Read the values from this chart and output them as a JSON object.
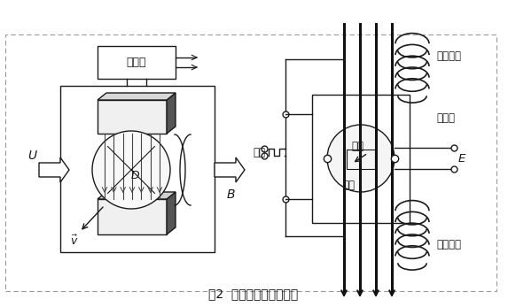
{
  "title": "图2  电磁流量计工作原理",
  "title_fontsize": 10,
  "bg_color": "#ffffff",
  "text_color": "#1a1a1a",
  "labels": {
    "converter": "转换器",
    "u_label": "U",
    "b_label": "B",
    "v_label": "\\vec{v}",
    "d_label": "D",
    "fangbo": "方波",
    "electrode": "电极",
    "liusu": "流速",
    "E_label": "E",
    "excitation_coil_top": "励磁线圈",
    "measurement_tube": "测量管",
    "excitation_coil_bot": "励磁线圈"
  }
}
